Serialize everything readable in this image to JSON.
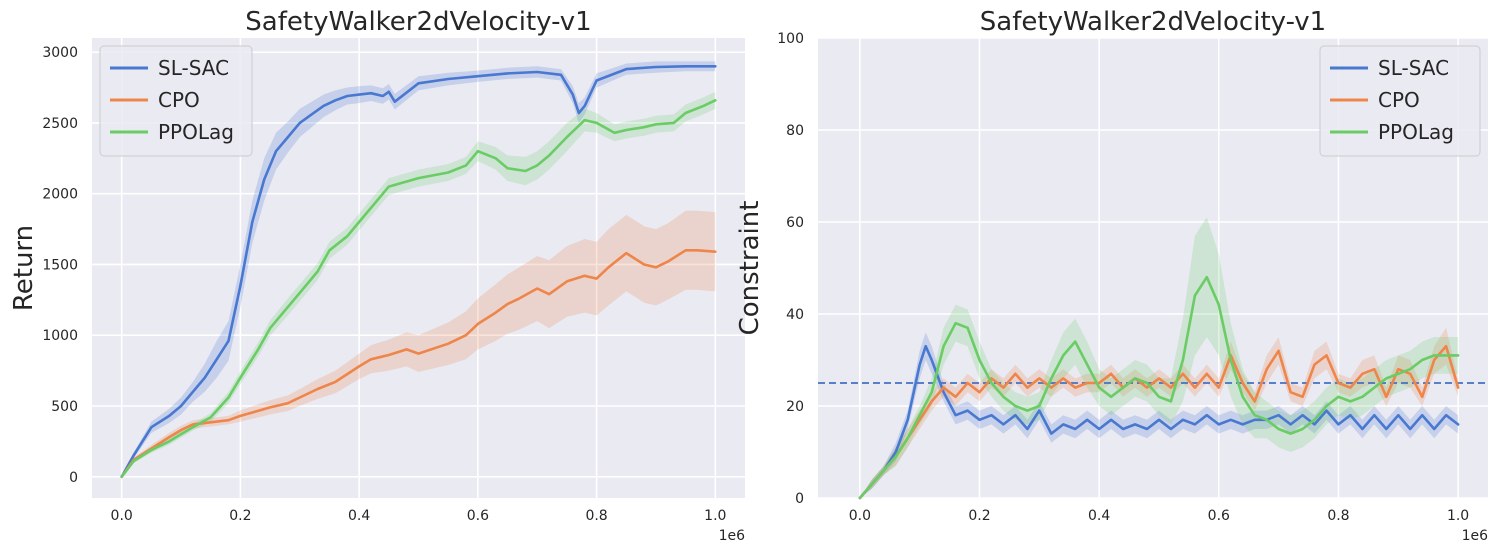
{
  "chart_data": [
    {
      "type": "line",
      "title": "SafetyWalker2dVelocity-v1",
      "xlabel": "",
      "ylabel": "Return",
      "x_scale_label": "1e6",
      "xlim": [
        -0.05,
        1.05
      ],
      "ylim": [
        -150,
        3100
      ],
      "xticks": [
        0.0,
        0.2,
        0.4,
        0.6,
        0.8,
        1.0
      ],
      "xtick_labels": [
        "0.0",
        "0.2",
        "0.4",
        "0.6",
        "0.8",
        "1.0"
      ],
      "yticks": [
        0,
        500,
        1000,
        1500,
        2000,
        2500,
        3000
      ],
      "ytick_labels": [
        "0",
        "500",
        "1000",
        "1500",
        "2000",
        "2500",
        "3000"
      ],
      "legend_position": "top-left",
      "grid": true,
      "series": [
        {
          "name": "SL-SAC",
          "color": "#4878d0",
          "x": [
            0.0,
            0.02,
            0.05,
            0.08,
            0.1,
            0.12,
            0.14,
            0.16,
            0.18,
            0.2,
            0.22,
            0.24,
            0.26,
            0.28,
            0.3,
            0.32,
            0.34,
            0.36,
            0.38,
            0.4,
            0.42,
            0.44,
            0.45,
            0.46,
            0.5,
            0.55,
            0.6,
            0.65,
            0.7,
            0.74,
            0.76,
            0.77,
            0.78,
            0.8,
            0.85,
            0.9,
            0.95,
            1.0
          ],
          "y": [
            0,
            150,
            350,
            430,
            500,
            600,
            700,
            830,
            960,
            1350,
            1800,
            2100,
            2300,
            2400,
            2500,
            2560,
            2620,
            2660,
            2690,
            2700,
            2710,
            2690,
            2720,
            2650,
            2780,
            2810,
            2830,
            2850,
            2860,
            2840,
            2700,
            2570,
            2620,
            2800,
            2880,
            2895,
            2900,
            2900
          ],
          "band": [
            0,
            20,
            40,
            50,
            60,
            70,
            100,
            130,
            140,
            150,
            150,
            150,
            130,
            110,
            100,
            90,
            80,
            70,
            60,
            60,
            55,
            55,
            55,
            55,
            50,
            45,
            40,
            40,
            40,
            40,
            60,
            70,
            60,
            50,
            40,
            40,
            35,
            35
          ]
        },
        {
          "name": "CPO",
          "color": "#ee854a",
          "x": [
            0.0,
            0.02,
            0.05,
            0.08,
            0.1,
            0.12,
            0.15,
            0.18,
            0.2,
            0.25,
            0.28,
            0.3,
            0.33,
            0.36,
            0.4,
            0.42,
            0.45,
            0.48,
            0.5,
            0.55,
            0.58,
            0.6,
            0.63,
            0.65,
            0.67,
            0.7,
            0.72,
            0.75,
            0.78,
            0.8,
            0.82,
            0.85,
            0.88,
            0.9,
            0.92,
            0.95,
            0.97,
            1.0
          ],
          "y": [
            0,
            120,
            200,
            280,
            330,
            370,
            385,
            400,
            430,
            490,
            520,
            560,
            620,
            670,
            780,
            830,
            860,
            900,
            870,
            940,
            1000,
            1080,
            1160,
            1220,
            1260,
            1330,
            1290,
            1380,
            1420,
            1400,
            1480,
            1580,
            1500,
            1480,
            1520,
            1600,
            1600,
            1590
          ],
          "band": [
            0,
            15,
            25,
            30,
            30,
            30,
            30,
            30,
            40,
            50,
            55,
            60,
            70,
            80,
            90,
            100,
            110,
            120,
            130,
            150,
            170,
            180,
            200,
            210,
            220,
            230,
            240,
            250,
            260,
            260,
            270,
            270,
            270,
            270,
            270,
            280,
            280,
            280
          ]
        },
        {
          "name": "PPOLag",
          "color": "#6acc64",
          "x": [
            0.0,
            0.02,
            0.05,
            0.08,
            0.1,
            0.12,
            0.15,
            0.18,
            0.2,
            0.23,
            0.25,
            0.28,
            0.3,
            0.33,
            0.35,
            0.38,
            0.4,
            0.43,
            0.45,
            0.5,
            0.55,
            0.58,
            0.6,
            0.63,
            0.65,
            0.68,
            0.7,
            0.72,
            0.75,
            0.78,
            0.8,
            0.83,
            0.85,
            0.88,
            0.9,
            0.93,
            0.95,
            0.98,
            1.0
          ],
          "y": [
            0,
            110,
            190,
            250,
            300,
            350,
            420,
            560,
            700,
            900,
            1050,
            1200,
            1300,
            1450,
            1600,
            1700,
            1800,
            1950,
            2050,
            2110,
            2150,
            2200,
            2300,
            2250,
            2180,
            2160,
            2200,
            2270,
            2400,
            2520,
            2500,
            2430,
            2450,
            2470,
            2490,
            2500,
            2570,
            2620,
            2660
          ],
          "band": [
            0,
            15,
            20,
            25,
            25,
            25,
            30,
            40,
            45,
            50,
            55,
            60,
            60,
            60,
            60,
            60,
            60,
            60,
            60,
            60,
            60,
            60,
            70,
            80,
            90,
            100,
            100,
            100,
            100,
            80,
            70,
            60,
            60,
            60,
            60,
            60,
            60,
            60,
            60
          ]
        }
      ]
    },
    {
      "type": "line",
      "title": "SafetyWalker2dVelocity-v1",
      "xlabel": "",
      "ylabel": "Constraint",
      "x_scale_label": "1e6",
      "xlim": [
        -0.07,
        1.05
      ],
      "ylim": [
        0,
        100
      ],
      "xticks": [
        0.0,
        0.2,
        0.4,
        0.6,
        0.8,
        1.0
      ],
      "xtick_labels": [
        "0.0",
        "0.2",
        "0.4",
        "0.6",
        "0.8",
        "1.0"
      ],
      "yticks": [
        0,
        20,
        40,
        60,
        80,
        100
      ],
      "ytick_labels": [
        "0",
        "20",
        "40",
        "60",
        "80",
        "100"
      ],
      "legend_position": "top-right",
      "grid": true,
      "threshold": 25,
      "threshold_color": "#4472c4",
      "series": [
        {
          "name": "SL-SAC",
          "color": "#4878d0",
          "x": [
            0.0,
            0.02,
            0.04,
            0.06,
            0.08,
            0.1,
            0.11,
            0.12,
            0.14,
            0.16,
            0.18,
            0.2,
            0.22,
            0.24,
            0.26,
            0.28,
            0.3,
            0.32,
            0.34,
            0.36,
            0.38,
            0.4,
            0.42,
            0.44,
            0.46,
            0.48,
            0.5,
            0.52,
            0.54,
            0.56,
            0.58,
            0.6,
            0.62,
            0.64,
            0.66,
            0.68,
            0.7,
            0.72,
            0.74,
            0.76,
            0.78,
            0.8,
            0.82,
            0.84,
            0.86,
            0.88,
            0.9,
            0.92,
            0.94,
            0.96,
            0.98,
            1.0
          ],
          "y": [
            0,
            3,
            6,
            10,
            17,
            29,
            33,
            30,
            23,
            18,
            19,
            17,
            18,
            16,
            18,
            15,
            19,
            14,
            16,
            15,
            17,
            15,
            17,
            15,
            16,
            15,
            17,
            15,
            17,
            16,
            18,
            16,
            17,
            16,
            17,
            17,
            18,
            16,
            18,
            16,
            19,
            16,
            18,
            15,
            18,
            15,
            18,
            15,
            18,
            15,
            18,
            16
          ],
          "band": [
            0,
            1,
            1,
            2,
            2,
            3,
            3,
            3,
            2,
            2,
            2,
            2,
            2,
            2,
            2,
            2,
            2,
            2,
            2,
            2,
            2,
            2,
            2,
            2,
            2,
            2,
            2,
            2,
            2,
            2,
            2,
            2,
            2,
            2,
            2,
            2,
            2,
            2,
            2,
            2,
            2,
            2,
            2,
            2,
            2,
            2,
            2,
            2,
            2,
            2,
            2,
            2
          ]
        },
        {
          "name": "CPO",
          "color": "#ee854a",
          "x": [
            0.0,
            0.02,
            0.04,
            0.06,
            0.08,
            0.1,
            0.12,
            0.14,
            0.16,
            0.18,
            0.2,
            0.22,
            0.24,
            0.26,
            0.28,
            0.3,
            0.32,
            0.34,
            0.36,
            0.38,
            0.4,
            0.42,
            0.44,
            0.46,
            0.48,
            0.5,
            0.52,
            0.54,
            0.56,
            0.58,
            0.6,
            0.62,
            0.64,
            0.66,
            0.68,
            0.7,
            0.72,
            0.74,
            0.76,
            0.78,
            0.8,
            0.82,
            0.84,
            0.86,
            0.88,
            0.9,
            0.92,
            0.94,
            0.96,
            0.98,
            1.0
          ],
          "y": [
            0,
            3,
            6,
            9,
            13,
            17,
            21,
            24,
            22,
            25,
            23,
            26,
            24,
            27,
            24,
            26,
            24,
            26,
            24,
            25,
            25,
            27,
            24,
            26,
            24,
            26,
            24,
            27,
            24,
            27,
            24,
            31,
            25,
            21,
            28,
            32,
            23,
            22,
            29,
            31,
            25,
            24,
            27,
            28,
            22,
            28,
            27,
            22,
            30,
            33,
            24
          ],
          "band": [
            0,
            1,
            1,
            2,
            2,
            2,
            2,
            2,
            2,
            2,
            2,
            2,
            2,
            2,
            2,
            2,
            2,
            2,
            2,
            2,
            2,
            2,
            2,
            2,
            2,
            2,
            2,
            2,
            2,
            2,
            2,
            3,
            2,
            2,
            3,
            3,
            2,
            2,
            3,
            3,
            2,
            2,
            3,
            3,
            2,
            3,
            3,
            2,
            3,
            4,
            2
          ]
        },
        {
          "name": "PPOLag",
          "color": "#6acc64",
          "x": [
            0.0,
            0.02,
            0.04,
            0.06,
            0.08,
            0.1,
            0.12,
            0.14,
            0.16,
            0.18,
            0.2,
            0.22,
            0.24,
            0.26,
            0.28,
            0.3,
            0.32,
            0.34,
            0.36,
            0.38,
            0.4,
            0.42,
            0.44,
            0.46,
            0.48,
            0.5,
            0.52,
            0.54,
            0.56,
            0.58,
            0.6,
            0.62,
            0.64,
            0.66,
            0.68,
            0.7,
            0.72,
            0.74,
            0.76,
            0.78,
            0.8,
            0.82,
            0.84,
            0.86,
            0.88,
            0.9,
            0.92,
            0.94,
            0.96,
            0.98,
            1.0
          ],
          "y": [
            0,
            3,
            6,
            9,
            13,
            18,
            23,
            33,
            38,
            37,
            30,
            25,
            22,
            20,
            19,
            20,
            26,
            31,
            34,
            29,
            24,
            22,
            24,
            26,
            25,
            22,
            21,
            30,
            44,
            48,
            42,
            30,
            22,
            18,
            17,
            15,
            14,
            15,
            17,
            20,
            22,
            21,
            22,
            24,
            26,
            27,
            28,
            30,
            31,
            31,
            31
          ],
          "band": [
            0,
            1,
            1,
            2,
            2,
            2,
            3,
            4,
            4,
            4,
            4,
            3,
            3,
            3,
            3,
            3,
            4,
            5,
            5,
            5,
            4,
            4,
            4,
            4,
            4,
            4,
            5,
            9,
            13,
            13,
            11,
            8,
            6,
            5,
            4,
            4,
            4,
            4,
            4,
            4,
            4,
            4,
            4,
            4,
            4,
            4,
            4,
            4,
            4,
            4,
            4
          ]
        }
      ]
    }
  ]
}
